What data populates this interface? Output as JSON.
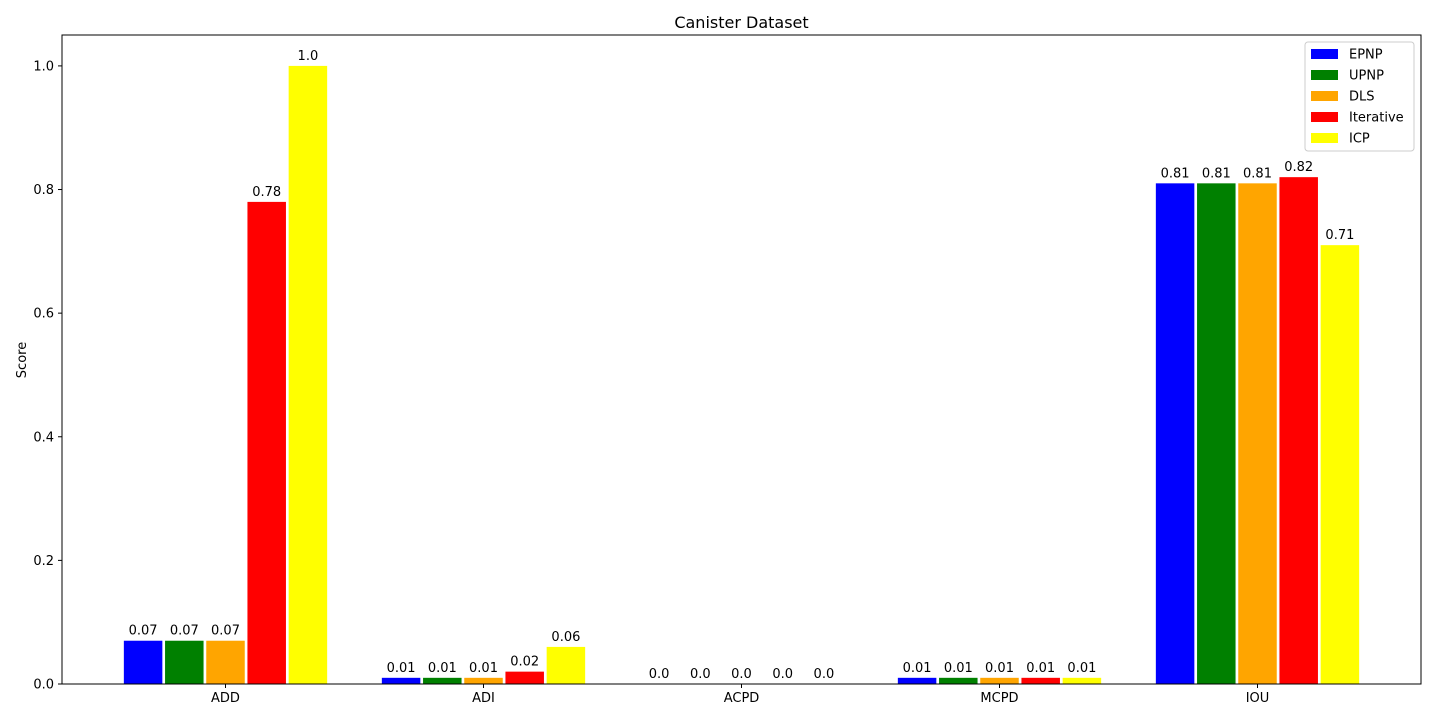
{
  "chart_data": {
    "type": "bar",
    "title": "Canister Dataset",
    "xlabel": "",
    "ylabel": "Score",
    "categories": [
      "ADD",
      "ADI",
      "ACPD",
      "MCPD",
      "IOU"
    ],
    "series": [
      {
        "name": "EPNP",
        "color": "#0000ff",
        "values": [
          0.07,
          0.01,
          0.0,
          0.01,
          0.81
        ],
        "labels": [
          "0.07",
          "0.01",
          "0.0",
          "0.01",
          "0.81"
        ]
      },
      {
        "name": "UPNP",
        "color": "#008000",
        "values": [
          0.07,
          0.01,
          0.0,
          0.01,
          0.81
        ],
        "labels": [
          "0.07",
          "0.01",
          "0.0",
          "0.01",
          "0.81"
        ]
      },
      {
        "name": "DLS",
        "color": "#ffa500",
        "values": [
          0.07,
          0.01,
          0.0,
          0.01,
          0.81
        ],
        "labels": [
          "0.07",
          "0.01",
          "0.0",
          "0.01",
          "0.81"
        ]
      },
      {
        "name": "Iterative",
        "color": "#ff0000",
        "values": [
          0.78,
          0.02,
          0.0,
          0.01,
          0.82
        ],
        "labels": [
          "0.78",
          "0.02",
          "0.0",
          "0.01",
          "0.82"
        ]
      },
      {
        "name": "ICP",
        "color": "#ffff00",
        "values": [
          1.0,
          0.06,
          0.0,
          0.01,
          0.71
        ],
        "labels": [
          "1.0",
          "0.06",
          "0.0",
          "0.01",
          "0.71"
        ]
      }
    ],
    "ylim": [
      0,
      1.05
    ],
    "yticks": [
      0.0,
      0.2,
      0.4,
      0.6,
      0.8,
      1.0
    ],
    "ytick_labels": [
      "0.0",
      "0.2",
      "0.4",
      "0.6",
      "0.8",
      "1.0"
    ],
    "grid": false,
    "legend_position": "top-right"
  }
}
